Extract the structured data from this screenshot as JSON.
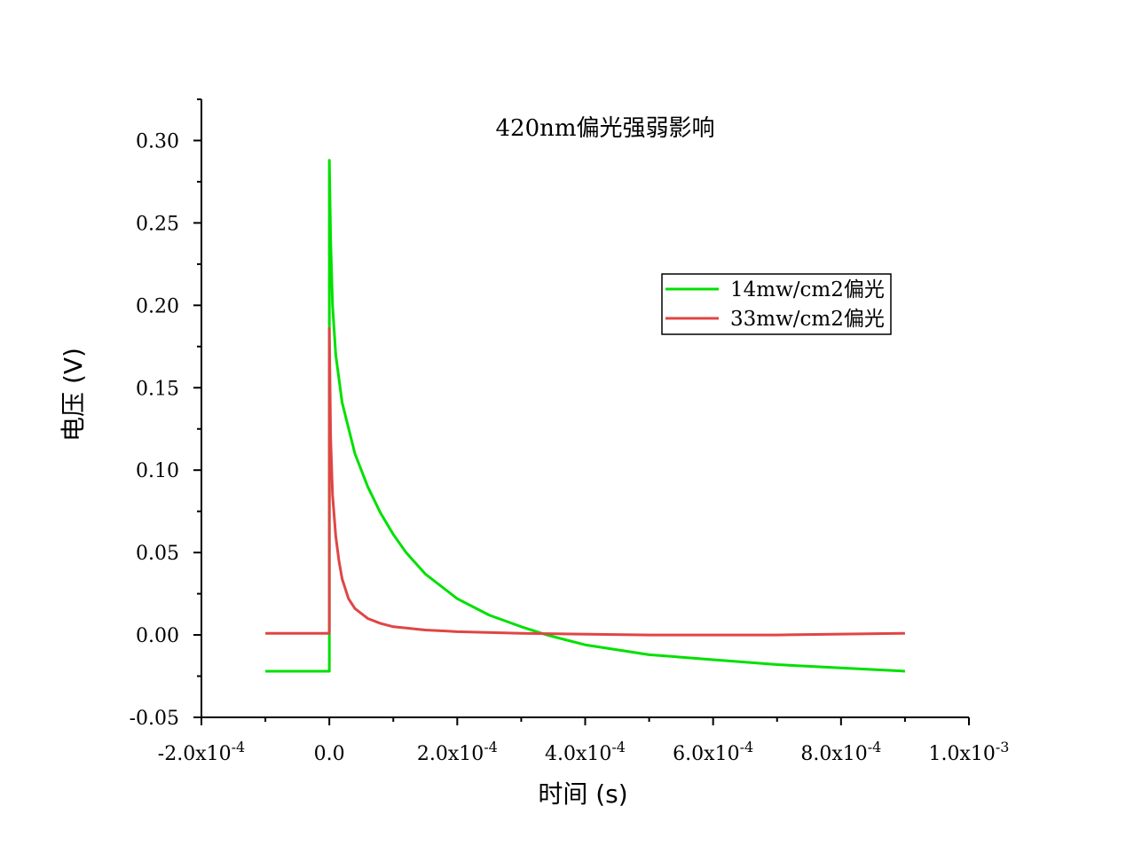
{
  "chart_data": {
    "type": "line",
    "title": "420nm偏光强弱影响",
    "xlabel": "时间 (s)",
    "ylabel": "电压 (V)",
    "xlim": [
      -0.0002,
      0.001
    ],
    "ylim": [
      -0.05,
      0.325
    ],
    "x_ticks": [
      {
        "value": -0.0002,
        "mantissa": "-2.0x10",
        "exp": "-4"
      },
      {
        "value": 0.0,
        "mantissa": "0.0",
        "exp": ""
      },
      {
        "value": 0.0002,
        "mantissa": "2.0x10",
        "exp": "-4"
      },
      {
        "value": 0.0004,
        "mantissa": "4.0x10",
        "exp": "-4"
      },
      {
        "value": 0.0006,
        "mantissa": "6.0x10",
        "exp": "-4"
      },
      {
        "value": 0.0008,
        "mantissa": "8.0x10",
        "exp": "-4"
      },
      {
        "value": 0.001,
        "mantissa": "1.0x10",
        "exp": "-3"
      }
    ],
    "y_ticks": [
      {
        "value": -0.05,
        "label": "-0.05"
      },
      {
        "value": 0.0,
        "label": "0.00"
      },
      {
        "value": 0.05,
        "label": "0.05"
      },
      {
        "value": 0.1,
        "label": "0.10"
      },
      {
        "value": 0.15,
        "label": "0.15"
      },
      {
        "value": 0.2,
        "label": "0.20"
      },
      {
        "value": 0.25,
        "label": "0.25"
      },
      {
        "value": 0.3,
        "label": "0.30"
      }
    ],
    "grid": false,
    "legend_position": "top-right",
    "series": [
      {
        "name": "14mw/cm2偏光",
        "color": "#00e000",
        "points": [
          [
            -0.0001,
            -0.022
          ],
          [
            0.0,
            -0.022
          ],
          [
            0.0,
            0.288
          ],
          [
            2e-06,
            0.24
          ],
          [
            5e-06,
            0.2
          ],
          [
            1e-05,
            0.17
          ],
          [
            2e-05,
            0.141
          ],
          [
            4e-05,
            0.11
          ],
          [
            6e-05,
            0.09
          ],
          [
            8e-05,
            0.074
          ],
          [
            0.0001,
            0.061
          ],
          [
            0.00012,
            0.05
          ],
          [
            0.00015,
            0.037
          ],
          [
            0.0002,
            0.022
          ],
          [
            0.00025,
            0.012
          ],
          [
            0.0003,
            0.005
          ],
          [
            0.00034,
            0.0
          ],
          [
            0.0004,
            -0.006
          ],
          [
            0.0005,
            -0.012
          ],
          [
            0.0006,
            -0.015
          ],
          [
            0.0007,
            -0.018
          ],
          [
            0.0008,
            -0.02
          ],
          [
            0.0009,
            -0.022
          ]
        ]
      },
      {
        "name": "33mw/cm2偏光",
        "color": "#e04545",
        "points": [
          [
            -0.0001,
            0.001
          ],
          [
            0.0,
            0.001
          ],
          [
            0.0,
            0.186
          ],
          [
            2e-06,
            0.12
          ],
          [
            5e-06,
            0.085
          ],
          [
            1e-05,
            0.06
          ],
          [
            1.5e-05,
            0.045
          ],
          [
            2e-05,
            0.034
          ],
          [
            3e-05,
            0.022
          ],
          [
            4e-05,
            0.016
          ],
          [
            6e-05,
            0.01
          ],
          [
            8e-05,
            0.007
          ],
          [
            0.0001,
            0.005
          ],
          [
            0.00015,
            0.003
          ],
          [
            0.0002,
            0.002
          ],
          [
            0.0003,
            0.001
          ],
          [
            0.0005,
            0.0
          ],
          [
            0.0007,
            0.0
          ],
          [
            0.0009,
            0.001
          ]
        ]
      }
    ]
  }
}
